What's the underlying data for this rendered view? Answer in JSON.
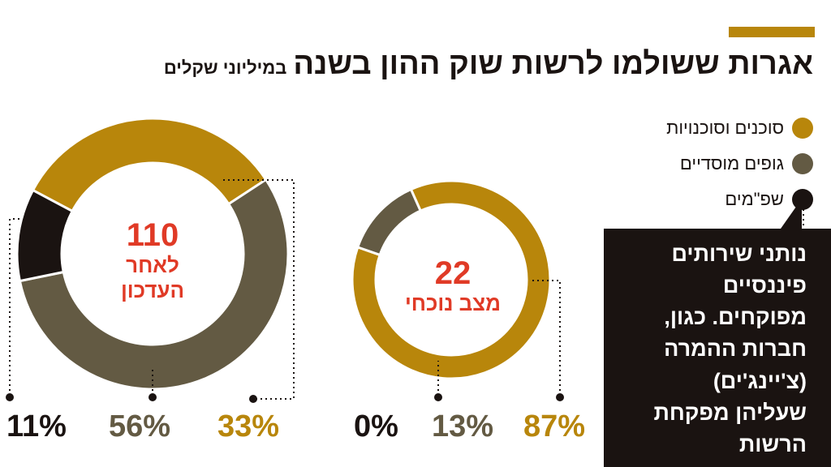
{
  "header": {
    "title": "אגרות ששולמו לרשות שוק ההון בשנה",
    "subtitle": "במיליוני שקלים"
  },
  "legend": [
    {
      "label": "סוכנים וסוכנויות",
      "color": "#b8860b"
    },
    {
      "label": "גופים מוסדיים",
      "color": "#635a43"
    },
    {
      "label": "שפ\"מים",
      "color": "#1a1311"
    }
  ],
  "note": {
    "lines": [
      "נותני שירותים",
      "פיננסיים",
      "מפוקחים. כגון,",
      "חברות ההמרה",
      "(צ'יינג'ים)",
      "שעליהן מפקחת",
      "הרשות"
    ]
  },
  "chart_data": [
    {
      "type": "pie",
      "donut": true,
      "total": 110,
      "center_label_lines": [
        "לאחר",
        "העדכון"
      ],
      "slices": [
        {
          "series": "סוכנים וסוכנויות",
          "value": 33,
          "label": "33%",
          "color": "#b8860b"
        },
        {
          "series": "גופים מוסדיים",
          "value": 56,
          "label": "56%",
          "color": "#635a43"
        },
        {
          "series": "שפ\"מים",
          "value": 11,
          "label": "11%",
          "color": "#1a1311"
        }
      ]
    },
    {
      "type": "pie",
      "donut": true,
      "total": 22,
      "center_label_lines": [
        "מצב נוכחי"
      ],
      "slices": [
        {
          "series": "סוכנים וסוכנויות",
          "value": 87,
          "label": "87%",
          "color": "#b8860b"
        },
        {
          "series": "גופים מוסדיים",
          "value": 13,
          "label": "13%",
          "color": "#635a43"
        },
        {
          "series": "שפ\"מים",
          "value": 0,
          "label": "0%",
          "color": "#1a1311"
        }
      ]
    }
  ]
}
